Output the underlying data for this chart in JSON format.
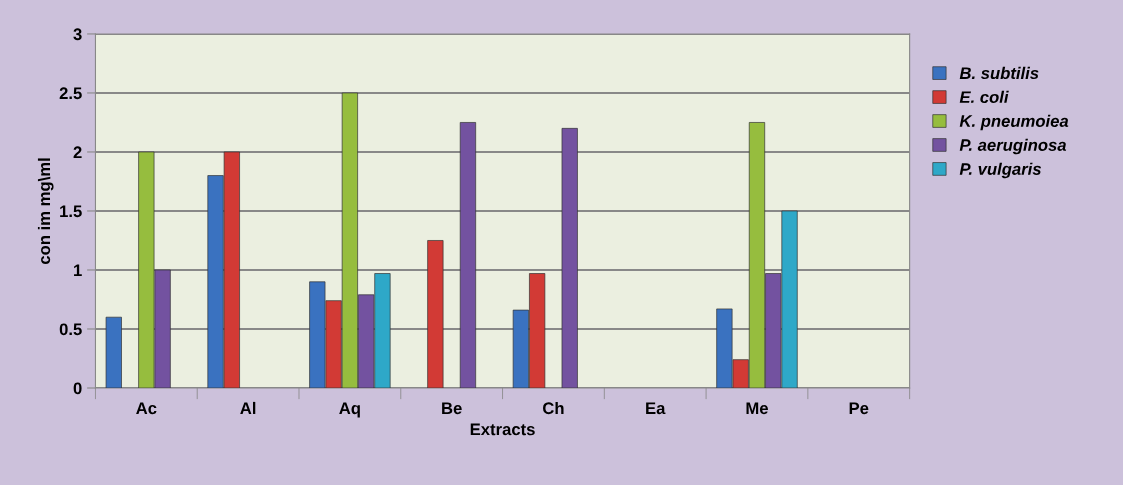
{
  "chart_data": {
    "type": "bar",
    "xlabel": "Extracts",
    "ylabel": "con im mg\\ml",
    "categories": [
      "Ac",
      "Al",
      "Aq",
      "Be",
      "Ch",
      "Ea",
      "Me",
      "Pe"
    ],
    "series": [
      {
        "name": "B. subtilis",
        "color": "#3a72c0",
        "values": [
          0.6,
          1.8,
          0.9,
          null,
          0.66,
          null,
          0.67,
          null
        ]
      },
      {
        "name": "E. coli",
        "color": "#d23a35",
        "values": [
          null,
          2.0,
          0.74,
          1.25,
          0.97,
          null,
          0.24,
          null
        ]
      },
      {
        "name": "K. pneumoiea",
        "color": "#96bd3e",
        "values": [
          2.0,
          null,
          2.5,
          null,
          null,
          null,
          2.25,
          null
        ]
      },
      {
        "name": "P. aeruginosa",
        "color": "#7352a0",
        "values": [
          1.0,
          null,
          0.79,
          2.25,
          2.2,
          null,
          0.97,
          null
        ]
      },
      {
        "name": "P. vulgaris",
        "color": "#2ea8c8",
        "values": [
          null,
          null,
          0.97,
          null,
          null,
          null,
          1.5,
          null
        ]
      }
    ],
    "ylim": [
      0,
      3
    ],
    "yticks": [
      0,
      {
        "value": 0.5,
        "label": "0.5"
      },
      1,
      {
        "value": 1.5,
        "label": "1.5"
      },
      2,
      {
        "value": 2.5,
        "label": "2.5"
      },
      3
    ],
    "grid": "y",
    "legend": "right"
  }
}
